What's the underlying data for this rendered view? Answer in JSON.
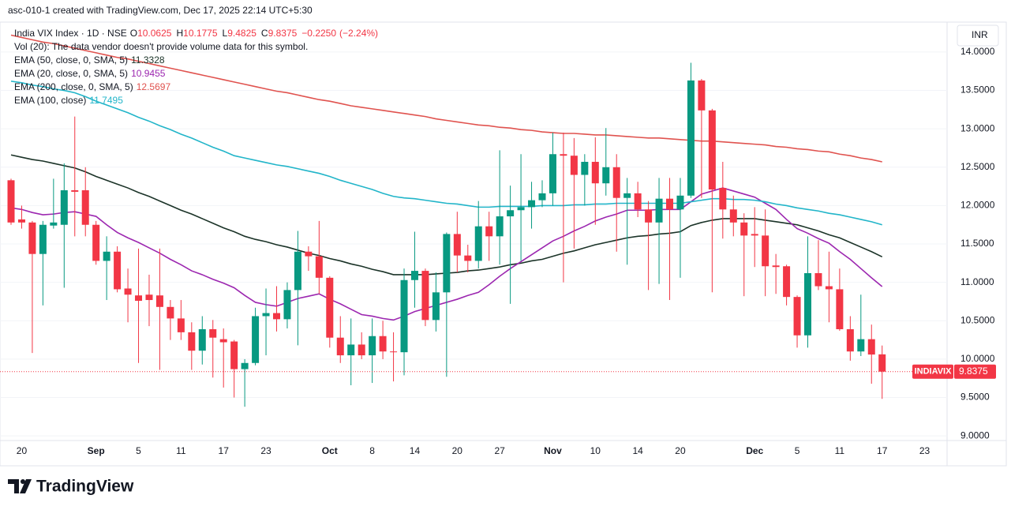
{
  "chart_data": {
    "type": "candlestick",
    "header": "asc-010-1 created with TradingView.com, Dec 17, 2025 22:14 UTC+5:30",
    "title": "India VIX Index · 1D · NSE",
    "ohlc_labels": [
      "O",
      "H",
      "L",
      "C"
    ],
    "change": {
      "value": -0.225,
      "label": "−0.2250"
    },
    "change_pct": {
      "value": -2.24,
      "label": "(−2.24%)"
    },
    "volume_note": "Vol (20): The data vendor doesn't provide volume data for this symbol.",
    "currency": "INR",
    "symbol": "INDIAVIX",
    "brand": "TradingView",
    "grid": true,
    "categories": [
      null,
      "20",
      null,
      null,
      null,
      null,
      null,
      null,
      "Sep",
      null,
      null,
      null,
      "5",
      null,
      null,
      null,
      "11",
      null,
      null,
      null,
      "17",
      null,
      null,
      null,
      "23",
      null,
      null,
      null,
      null,
      null,
      "Oct",
      null,
      null,
      null,
      "8",
      null,
      null,
      null,
      "14",
      null,
      null,
      null,
      "20",
      null,
      null,
      null,
      "27",
      null,
      null,
      null,
      null,
      "Nov",
      null,
      null,
      null,
      "10",
      null,
      null,
      null,
      "14",
      null,
      null,
      null,
      "20",
      null,
      null,
      null,
      null,
      null,
      null,
      "Dec",
      null,
      null,
      null,
      "5",
      null,
      null,
      null,
      "11",
      null,
      null,
      null,
      "17",
      null,
      null,
      null,
      "23",
      null
    ],
    "candles": {
      "up_color": "#089981",
      "down_color": "#f23645",
      "open": [
        12.33,
        11.82,
        11.78,
        11.37,
        11.74,
        11.75,
        12.2,
        12.2,
        11.75,
        11.28,
        11.4,
        10.92,
        10.83,
        10.84,
        10.83,
        10.68,
        10.53,
        10.35,
        10.11,
        10.39,
        10.26,
        10.23,
        9.87,
        9.95,
        10.56,
        10.6,
        10.52,
        10.9,
        11.4,
        11.34,
        11.06,
        10.28,
        10.05,
        10.19,
        10.05,
        10.3,
        10.1,
        10.09,
        11.03,
        11.15,
        10.51,
        10.87,
        11.63,
        11.35,
        11.28,
        11.73,
        11.6,
        11.86,
        11.94,
        11.98,
        12.07,
        12.16,
        12.67,
        12.65,
        12.4,
        12.57,
        12.29,
        12.5,
        12.1,
        12.16,
        11.95,
        11.78,
        12.09,
        11.95,
        12.13,
        13.63,
        13.24,
        12.23,
        11.95,
        11.78,
        11.63,
        11.61,
        11.22,
        11.21,
        10.81,
        10.31,
        11.12,
        10.95,
        10.91,
        10.39,
        10.1,
        10.26,
        10.0625,
        null,
        null,
        null,
        null,
        null
      ],
      "high": [
        12.35,
        12.0,
        11.8,
        11.8,
        12.35,
        12.55,
        13.16,
        12.5,
        11.8,
        11.6,
        11.47,
        11.18,
        11.44,
        11.1,
        11.44,
        10.77,
        10.77,
        10.48,
        10.56,
        10.51,
        10.4,
        10.25,
        10.0,
        10.67,
        10.92,
        10.95,
        11.0,
        11.67,
        11.47,
        11.8,
        11.08,
        10.56,
        10.53,
        10.35,
        10.53,
        10.5,
        10.35,
        11.18,
        11.66,
        11.18,
        11.13,
        11.65,
        11.92,
        11.49,
        12.06,
        11.92,
        12.72,
        12.26,
        12.67,
        12.31,
        12.33,
        12.95,
        12.95,
        12.88,
        12.67,
        12.89,
        13.01,
        12.67,
        12.36,
        12.31,
        12.06,
        12.36,
        12.36,
        12.36,
        13.86,
        13.65,
        13.26,
        12.57,
        12.13,
        11.9,
        11.98,
        11.95,
        11.37,
        11.23,
        10.83,
        11.6,
        11.55,
        11.4,
        11.18,
        10.56,
        10.84,
        10.45,
        10.1775,
        null,
        null,
        null,
        null,
        null
      ],
      "low": [
        11.75,
        11.7,
        10.08,
        10.7,
        11.7,
        10.93,
        11.6,
        11.6,
        11.23,
        10.77,
        10.87,
        10.48,
        9.95,
        10.43,
        9.86,
        10.25,
        10.25,
        9.86,
        9.93,
        9.76,
        9.63,
        9.5,
        9.38,
        9.92,
        10.05,
        10.36,
        10.4,
        10.18,
        11.15,
        10.85,
        10.15,
        9.95,
        9.66,
        10.0,
        9.69,
        10.0,
        9.71,
        9.79,
        10.67,
        10.43,
        10.36,
        9.77,
        11.13,
        11.13,
        11.18,
        11.28,
        11.23,
        10.72,
        11.28,
        11.7,
        11.98,
        12.0,
        11.0,
        11.44,
        12.0,
        11.75,
        12.13,
        11.4,
        11.23,
        11.85,
        10.9,
        10.98,
        10.77,
        11.06,
        12.1,
        12.1,
        10.87,
        11.57,
        11.6,
        10.82,
        11.2,
        10.82,
        10.85,
        10.7,
        10.15,
        10.15,
        10.9,
        10.48,
        10.37,
        9.98,
        10.04,
        9.68,
        9.4825,
        null,
        null,
        null,
        null,
        null
      ],
      "close": [
        11.78,
        11.78,
        11.37,
        11.75,
        11.78,
        12.2,
        12.18,
        11.75,
        11.28,
        11.4,
        10.91,
        10.84,
        10.76,
        10.77,
        10.68,
        10.53,
        10.35,
        10.11,
        10.39,
        10.28,
        10.22,
        9.87,
        9.95,
        10.56,
        10.6,
        10.52,
        10.9,
        11.4,
        11.34,
        11.06,
        10.28,
        10.05,
        10.19,
        10.05,
        10.3,
        10.1,
        10.09,
        11.03,
        11.15,
        10.51,
        10.87,
        11.63,
        11.35,
        11.28,
        11.73,
        11.6,
        11.86,
        11.94,
        11.98,
        12.07,
        12.16,
        12.67,
        12.65,
        12.4,
        12.57,
        12.29,
        12.5,
        12.1,
        12.16,
        11.95,
        11.78,
        12.09,
        11.95,
        12.13,
        13.63,
        13.24,
        12.21,
        11.95,
        11.78,
        11.61,
        11.61,
        11.21,
        11.2,
        10.81,
        10.31,
        11.12,
        10.95,
        10.91,
        10.39,
        10.1,
        10.26,
        10.06,
        9.8375,
        null,
        null,
        null,
        null,
        null
      ]
    },
    "series": [
      {
        "name": "EMA (50, close, 0, SMA, 5)",
        "color": "#1b3328",
        "values": [
          12.66,
          12.63,
          12.6,
          12.58,
          12.55,
          12.52,
          12.49,
          12.44,
          12.38,
          12.33,
          12.28,
          12.23,
          12.17,
          12.12,
          12.06,
          12.0,
          11.94,
          11.89,
          11.83,
          11.77,
          11.71,
          11.66,
          11.6,
          11.56,
          11.53,
          11.49,
          11.46,
          11.42,
          11.38,
          11.35,
          11.31,
          11.28,
          11.24,
          11.21,
          11.17,
          11.14,
          11.1,
          11.1,
          11.1,
          11.1,
          11.11,
          11.12,
          11.13,
          11.15,
          11.16,
          11.18,
          11.2,
          11.23,
          11.25,
          11.28,
          11.3,
          11.34,
          11.38,
          11.41,
          11.45,
          11.49,
          11.52,
          11.55,
          11.58,
          11.6,
          11.61,
          11.63,
          11.64,
          11.66,
          11.74,
          11.78,
          11.81,
          11.83,
          11.83,
          11.83,
          11.83,
          11.81,
          11.79,
          11.77,
          11.75,
          11.71,
          11.67,
          11.62,
          11.58,
          11.52,
          11.46,
          11.4,
          11.3328,
          null,
          null,
          null,
          null,
          null
        ]
      },
      {
        "name": "EMA (20, close, 0, SMA, 5)",
        "color": "#9c27b0",
        "values": [
          11.97,
          11.95,
          11.91,
          11.88,
          11.89,
          11.91,
          11.92,
          11.89,
          11.86,
          11.75,
          11.65,
          11.58,
          11.52,
          11.45,
          11.38,
          11.3,
          11.23,
          11.15,
          11.1,
          11.04,
          10.99,
          10.93,
          10.83,
          10.74,
          10.71,
          10.69,
          10.74,
          10.79,
          10.82,
          10.85,
          10.78,
          10.72,
          10.65,
          10.58,
          10.56,
          10.53,
          10.51,
          10.56,
          10.62,
          10.66,
          10.7,
          10.74,
          10.78,
          10.83,
          10.87,
          10.97,
          11.08,
          11.18,
          11.27,
          11.36,
          11.45,
          11.54,
          11.6,
          11.67,
          11.73,
          11.8,
          11.85,
          11.89,
          11.94,
          11.94,
          11.94,
          11.95,
          11.95,
          11.95,
          12.05,
          12.15,
          12.19,
          12.23,
          12.19,
          12.15,
          12.11,
          12.03,
          11.95,
          11.82,
          11.7,
          11.64,
          11.57,
          11.51,
          11.4,
          11.3,
          11.18,
          11.06,
          10.9455,
          null,
          null,
          null,
          null,
          null
        ]
      },
      {
        "name": "EMA (200, close, 0, SMA, 5)",
        "color": "#e0534f",
        "values": [
          14.22,
          14.19,
          14.16,
          14.13,
          14.11,
          14.08,
          14.05,
          14.02,
          13.99,
          13.96,
          13.93,
          13.91,
          13.88,
          13.85,
          13.82,
          13.79,
          13.76,
          13.73,
          13.7,
          13.67,
          13.64,
          13.61,
          13.58,
          13.55,
          13.52,
          13.49,
          13.47,
          13.44,
          13.41,
          13.38,
          13.36,
          13.33,
          13.3,
          13.28,
          13.26,
          13.24,
          13.22,
          13.2,
          13.18,
          13.16,
          13.13,
          13.11,
          13.09,
          13.07,
          13.05,
          13.04,
          13.02,
          13.01,
          12.99,
          12.98,
          12.96,
          12.95,
          12.94,
          12.94,
          12.93,
          12.92,
          12.92,
          12.91,
          12.9,
          12.89,
          12.88,
          12.88,
          12.87,
          12.86,
          12.85,
          12.84,
          12.84,
          12.83,
          12.82,
          12.81,
          12.8,
          12.79,
          12.77,
          12.76,
          12.74,
          12.73,
          12.71,
          12.7,
          12.67,
          12.65,
          12.62,
          12.6,
          12.5697,
          null,
          null,
          null,
          null,
          null
        ]
      },
      {
        "name": "EMA (100, close)",
        "color": "#22b5c9",
        "values": [
          13.62,
          13.6,
          13.57,
          13.55,
          13.52,
          13.5,
          13.47,
          13.42,
          13.36,
          13.31,
          13.26,
          13.21,
          13.15,
          13.1,
          13.04,
          12.99,
          12.93,
          12.88,
          12.82,
          12.76,
          12.71,
          12.65,
          12.62,
          12.59,
          12.56,
          12.53,
          12.51,
          12.48,
          12.45,
          12.42,
          12.38,
          12.33,
          12.29,
          12.25,
          12.21,
          12.16,
          12.12,
          12.1,
          12.09,
          12.07,
          12.05,
          12.03,
          12.02,
          12.0,
          11.98,
          11.98,
          11.99,
          11.99,
          11.99,
          11.99,
          12.0,
          12.0,
          12.0,
          12.01,
          12.01,
          12.02,
          12.02,
          12.03,
          12.03,
          12.03,
          12.03,
          12.03,
          12.03,
          12.03,
          12.05,
          12.07,
          12.09,
          12.09,
          12.08,
          12.08,
          12.07,
          12.05,
          12.02,
          12.0,
          11.97,
          11.95,
          11.93,
          11.9,
          11.88,
          11.85,
          11.82,
          11.79,
          11.7495,
          null,
          null,
          null,
          null,
          null
        ]
      }
    ],
    "ylim": [
      8.94,
      14.39
    ],
    "yticks": [
      {
        "value": 9,
        "label": "9.0000"
      },
      {
        "value": 9.5,
        "label": "9.5000"
      },
      {
        "value": 10,
        "label": "10.0000"
      },
      {
        "value": 10.5,
        "label": "10.5000"
      },
      {
        "value": 11,
        "label": "11.0000"
      },
      {
        "value": 11.5,
        "label": "11.5000"
      },
      {
        "value": 12,
        "label": "12.0000"
      },
      {
        "value": 12.5,
        "label": "12.5000"
      },
      {
        "value": 13,
        "label": "13.0000"
      },
      {
        "value": 13.5,
        "label": "13.5000"
      },
      {
        "value": 14,
        "label": "14.0000"
      }
    ]
  }
}
